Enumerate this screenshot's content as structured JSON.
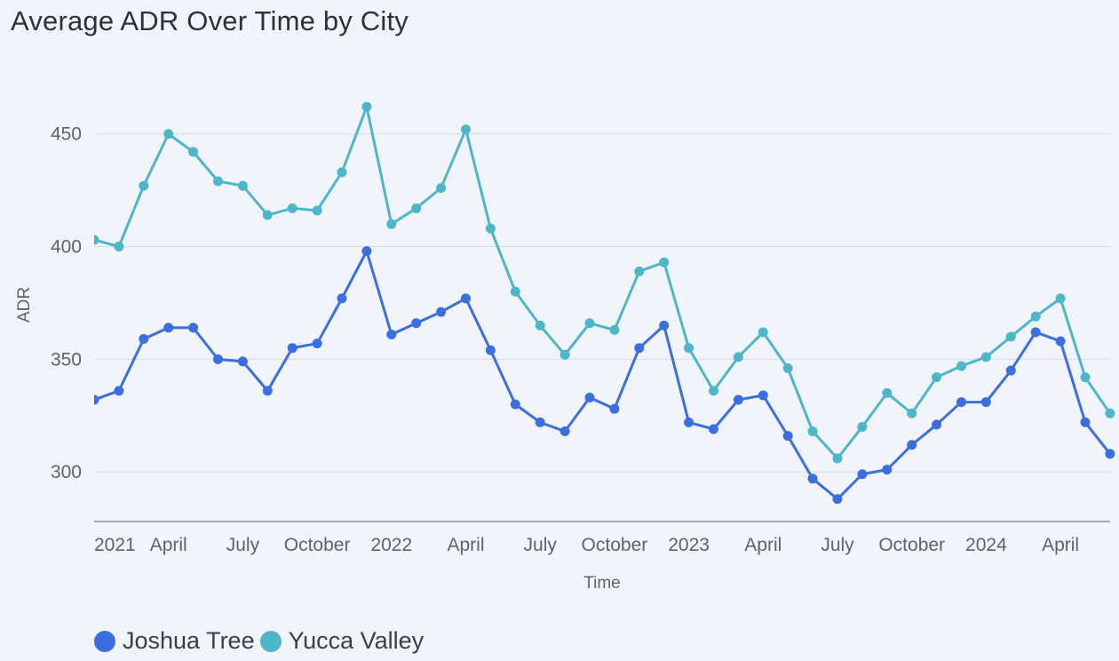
{
  "chart_data": {
    "type": "line",
    "title": "Average ADR Over Time by City",
    "xlabel": "Time",
    "ylabel": "ADR",
    "ylim": [
      278,
      470
    ],
    "y_ticks": [
      300,
      350,
      400,
      450
    ],
    "grid": true,
    "legend_position": "bottom-left",
    "x": [
      "2021-01",
      "2021-02",
      "2021-03",
      "2021-04",
      "2021-05",
      "2021-06",
      "2021-07",
      "2021-08",
      "2021-09",
      "2021-10",
      "2021-11",
      "2021-12",
      "2022-01",
      "2022-02",
      "2022-03",
      "2022-04",
      "2022-05",
      "2022-06",
      "2022-07",
      "2022-08",
      "2022-09",
      "2022-10",
      "2022-11",
      "2022-12",
      "2023-01",
      "2023-02",
      "2023-03",
      "2023-04",
      "2023-05",
      "2023-06",
      "2023-07",
      "2023-08",
      "2023-09",
      "2023-10",
      "2023-11",
      "2023-12",
      "2024-01",
      "2024-02",
      "2024-03",
      "2024-04",
      "2024-05",
      "2024-06"
    ],
    "x_ticks": [
      {
        "x": "2021-01",
        "label": "2021"
      },
      {
        "x": "2021-04",
        "label": "April"
      },
      {
        "x": "2021-07",
        "label": "July"
      },
      {
        "x": "2021-10",
        "label": "October"
      },
      {
        "x": "2022-01",
        "label": "2022"
      },
      {
        "x": "2022-04",
        "label": "April"
      },
      {
        "x": "2022-07",
        "label": "July"
      },
      {
        "x": "2022-10",
        "label": "October"
      },
      {
        "x": "2023-01",
        "label": "2023"
      },
      {
        "x": "2023-04",
        "label": "April"
      },
      {
        "x": "2023-07",
        "label": "July"
      },
      {
        "x": "2023-10",
        "label": "October"
      },
      {
        "x": "2024-01",
        "label": "2024"
      },
      {
        "x": "2024-04",
        "label": "April"
      }
    ],
    "series": [
      {
        "name": "Joshua Tree",
        "color": "#3b6fe0",
        "values": [
          332,
          336,
          359,
          364,
          364,
          350,
          349,
          336,
          355,
          357,
          377,
          398,
          361,
          366,
          371,
          377,
          354,
          330,
          322,
          318,
          333,
          328,
          355,
          365,
          322,
          319,
          332,
          334,
          316,
          297,
          288,
          299,
          301,
          312,
          321,
          331,
          331,
          345,
          362,
          358,
          322,
          308
        ]
      },
      {
        "name": "Yucca Valley",
        "color": "#4db6c9",
        "values": [
          403,
          400,
          427,
          450,
          442,
          429,
          427,
          414,
          417,
          416,
          433,
          462,
          410,
          417,
          426,
          452,
          408,
          380,
          365,
          352,
          366,
          363,
          389,
          393,
          355,
          336,
          351,
          362,
          346,
          318,
          306,
          320,
          335,
          326,
          342,
          347,
          351,
          360,
          369,
          377,
          342,
          326
        ]
      }
    ]
  }
}
